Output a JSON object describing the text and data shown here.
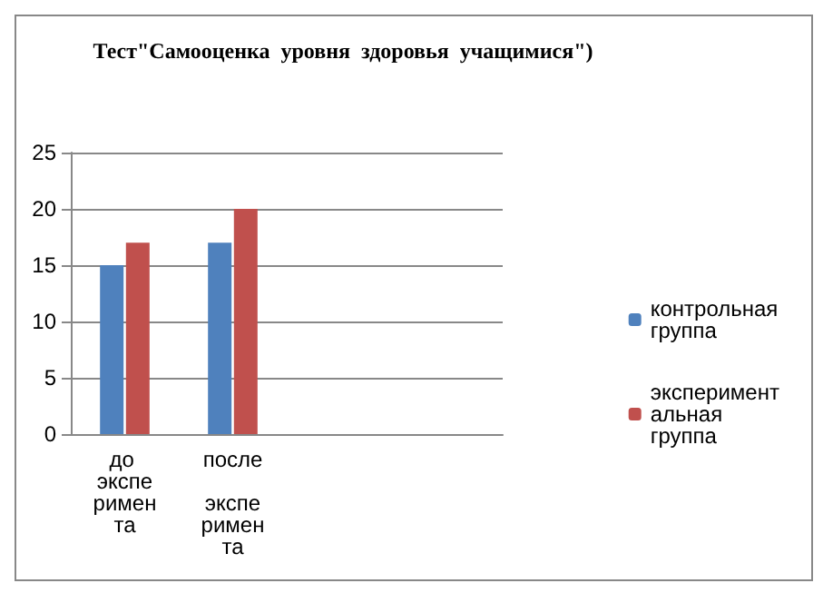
{
  "chart_data": {
    "type": "bar",
    "title": "Тест\"Самооценка  уровня  здоровья  учащимися\")",
    "categories": [
      "до эксперимента",
      "после  эксперимента",
      null,
      null
    ],
    "series": [
      {
        "name": "контрольная группа",
        "color": "#4f81bd",
        "values": [
          15,
          17,
          null,
          null
        ]
      },
      {
        "name": "экспериментальная группа",
        "color": "#c0504d",
        "values": [
          17,
          20,
          null,
          null
        ]
      }
    ],
    "ylim": [
      0,
      25
    ],
    "yticks": [
      0,
      5,
      10,
      15,
      20,
      25
    ],
    "grid": "y",
    "legend": "right"
  }
}
